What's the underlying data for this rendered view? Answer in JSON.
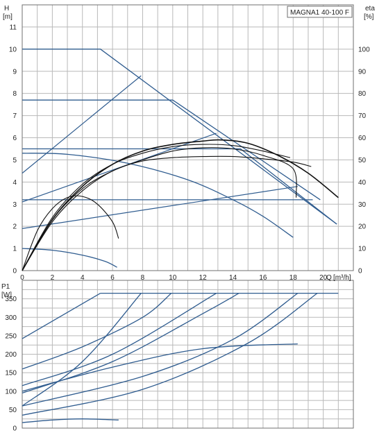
{
  "chart_data": [
    {
      "type": "line",
      "title": "MAGNA1 40-100 F",
      "ylabel": "H",
      "yunit": "[m]",
      "y2label": "eta",
      "y2unit": "[%]",
      "xlabel": "Q",
      "xunit": "[m³/h]",
      "xlim": [
        0,
        22
      ],
      "ylim": [
        0,
        12
      ],
      "y2lim": [
        0,
        120
      ],
      "grid": true,
      "x_ticks": [
        0,
        2,
        4,
        6,
        8,
        10,
        12,
        14,
        16,
        18,
        20
      ],
      "y_ticks": [
        0,
        1,
        2,
        3,
        4,
        5,
        6,
        7,
        8,
        9,
        10,
        11
      ],
      "y2_ticks": [
        0,
        10,
        20,
        30,
        40,
        50,
        60,
        70,
        80,
        90,
        100
      ],
      "head_curves": [
        {
          "x": [
            0,
            5.2,
            20.9
          ],
          "y": [
            10,
            10,
            2.1
          ]
        },
        {
          "x": [
            0,
            10,
            19.8
          ],
          "y": [
            7.7,
            7.7,
            3.2
          ]
        },
        {
          "x": [
            0,
            14.5,
            20.9
          ],
          "y": [
            5.5,
            5.5,
            2.1
          ]
        },
        {
          "x": [
            0,
            19.3
          ],
          "y": [
            3.2,
            3.2
          ]
        },
        {
          "x": [
            0,
            3,
            7,
            11,
            14,
            16,
            18
          ],
          "y": [
            5.3,
            5.25,
            4.85,
            4.1,
            3.2,
            2.45,
            1.5
          ]
        },
        {
          "x": [
            0,
            2,
            4,
            5.5,
            6.3
          ],
          "y": [
            1.0,
            0.92,
            0.7,
            0.42,
            0.15
          ]
        }
      ],
      "system_curves": [
        {
          "x": [
            0,
            7.9
          ],
          "y": [
            4.4,
            8.8
          ]
        },
        {
          "x": [
            0,
            12.9
          ],
          "y": [
            3.1,
            6.2
          ]
        },
        {
          "x": [
            0,
            18.3
          ],
          "y": [
            1.9,
            3.8
          ]
        }
      ],
      "efficiency_curves": [
        {
          "x": [
            0,
            2,
            4,
            6,
            8,
            10,
            12,
            13.2,
            15,
            17,
            19,
            21
          ],
          "y": [
            0,
            23,
            38,
            48,
            54,
            57,
            58.5,
            59,
            57.5,
            52,
            44,
            33
          ]
        },
        {
          "x": [
            0,
            2,
            4,
            6,
            8,
            10,
            12,
            14,
            16,
            18,
            19.2
          ],
          "y": [
            0,
            22,
            36,
            45,
            49.5,
            51,
            51.5,
            51.5,
            50.5,
            49,
            47
          ]
        },
        {
          "x": [
            0,
            2,
            4,
            6,
            8,
            10,
            12,
            14,
            16,
            18,
            18.2
          ],
          "y": [
            0,
            23,
            37,
            45,
            50,
            54,
            55.5,
            55,
            52,
            46,
            33
          ]
        },
        {
          "x": [
            0,
            2,
            4,
            6,
            8,
            10,
            12,
            14,
            16,
            17.8
          ],
          "y": [
            0,
            24,
            39,
            48,
            53,
            56,
            57,
            56.5,
            54,
            51
          ]
        },
        {
          "x": [
            0,
            1,
            2,
            3,
            4,
            5,
            6,
            6.4
          ],
          "y": [
            0,
            18,
            28,
            33,
            33.5,
            30,
            22,
            14.5
          ]
        }
      ]
    },
    {
      "type": "line",
      "ylabel": "P1",
      "yunit": "[W]",
      "xlim": [
        0,
        22
      ],
      "ylim": [
        0,
        400
      ],
      "grid": true,
      "y_ticks": [
        0,
        50,
        100,
        150,
        200,
        250,
        300,
        350
      ],
      "power_cap": {
        "x": [
          5.2,
          21
        ],
        "y": [
          365,
          365
        ]
      },
      "power_curves": [
        {
          "x": [
            0,
            5.2
          ],
          "y": [
            242,
            365
          ]
        },
        {
          "x": [
            0,
            4,
            8,
            9.9
          ],
          "y": [
            160,
            220,
            300,
            365
          ]
        },
        {
          "x": [
            0,
            4,
            7.9
          ],
          "y": [
            60,
            180,
            365
          ]
        },
        {
          "x": [
            0,
            6,
            12.9
          ],
          "y": [
            115,
            200,
            365
          ]
        },
        {
          "x": [
            0,
            6,
            12,
            14.4
          ],
          "y": [
            95,
            180,
            310,
            365
          ]
        },
        {
          "x": [
            0,
            8,
            14,
            18.3
          ],
          "y": [
            60,
            140,
            240,
            365
          ]
        },
        {
          "x": [
            0,
            8,
            15,
            19.6
          ],
          "y": [
            35,
            105,
            230,
            365
          ]
        },
        {
          "x": [
            0,
            6,
            12,
            18.3
          ],
          "y": [
            100,
            165,
            215,
            228
          ]
        },
        {
          "x": [
            0,
            2,
            4,
            6.4
          ],
          "y": [
            15,
            22,
            25,
            22
          ]
        }
      ]
    }
  ]
}
